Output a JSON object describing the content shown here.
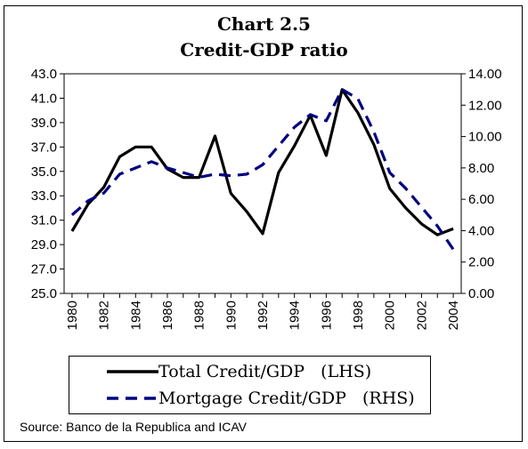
{
  "chart_data": {
    "type": "line",
    "title": "Chart 2.5",
    "subtitle": "Credit-GDP ratio",
    "x": [
      1980,
      1981,
      1982,
      1983,
      1984,
      1985,
      1986,
      1987,
      1988,
      1989,
      1990,
      1991,
      1992,
      1993,
      1994,
      1995,
      1996,
      1997,
      1998,
      1999,
      2000,
      2001,
      2002,
      2003,
      2004
    ],
    "x_tick_labels": [
      "1980",
      "1982",
      "1984",
      "1986",
      "1988",
      "1990",
      "1992",
      "1994",
      "1996",
      "1998",
      "2000",
      "2002",
      "2004"
    ],
    "y_left": {
      "range": [
        25.0,
        43.0
      ],
      "tick_labels": [
        "43.0",
        "41.0",
        "39.0",
        "37.0",
        "35.0",
        "33.0",
        "31.0",
        "29.0",
        "27.0",
        "25.0"
      ]
    },
    "y_right": {
      "range": [
        0.0,
        14.0
      ],
      "tick_labels": [
        "14.00",
        "12.00",
        "10.00",
        "8.00",
        "6.00",
        "4.00",
        "2.00",
        "0.00"
      ]
    },
    "series": [
      {
        "name": "Total Credit/GDP   (LHS)",
        "axis": "left",
        "style": "solid",
        "color": "#000000",
        "values": [
          30.1,
          32.3,
          33.7,
          36.2,
          37.0,
          37.0,
          35.2,
          34.5,
          34.5,
          37.9,
          33.2,
          31.7,
          29.9,
          34.9,
          37.1,
          39.6,
          36.3,
          41.7,
          39.8,
          37.2,
          33.6,
          32.0,
          30.7,
          29.8,
          30.3
        ]
      },
      {
        "name": "Mortgage Credit/GDP   (RHS)",
        "axis": "right",
        "style": "dashed",
        "color": "#000080",
        "values": [
          5.0,
          5.9,
          6.4,
          7.6,
          8.0,
          8.4,
          8.0,
          7.7,
          7.4,
          7.6,
          7.5,
          7.6,
          8.2,
          9.4,
          10.6,
          11.4,
          11.0,
          13.0,
          12.4,
          10.3,
          7.7,
          6.7,
          5.5,
          4.3,
          2.8
        ]
      }
    ],
    "legend_position": "bottom",
    "grid": false
  },
  "source": "Source: Banco de la Republica and ICAV"
}
